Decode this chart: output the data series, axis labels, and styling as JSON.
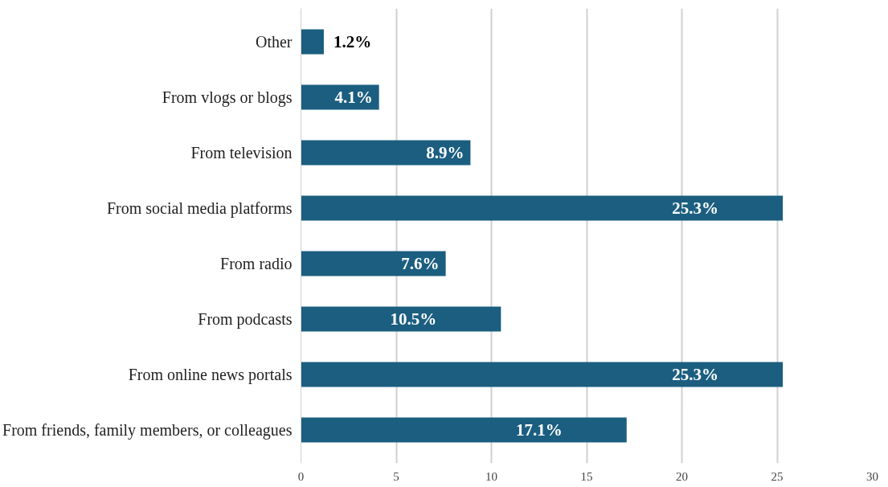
{
  "chart_data": {
    "type": "bar",
    "orientation": "horizontal",
    "categories": [
      "Other",
      "From vlogs or blogs",
      "From television",
      "From social media platforms",
      "From radio",
      "From podcasts",
      "From online news portals",
      "From friends, family members, or colleagues"
    ],
    "values": [
      1.2,
      4.1,
      8.9,
      25.3,
      7.6,
      10.5,
      25.3,
      17.1
    ],
    "value_labels": [
      "1.2%",
      "4.1%",
      "8.9%",
      "25.3%",
      "7.6%",
      "10.5%",
      "25.3%",
      "17.1%"
    ],
    "color": "#1b5e80",
    "xlim": [
      0,
      30
    ],
    "xticks": [
      0,
      5,
      10,
      15,
      20,
      25,
      30
    ],
    "grid": "x"
  }
}
